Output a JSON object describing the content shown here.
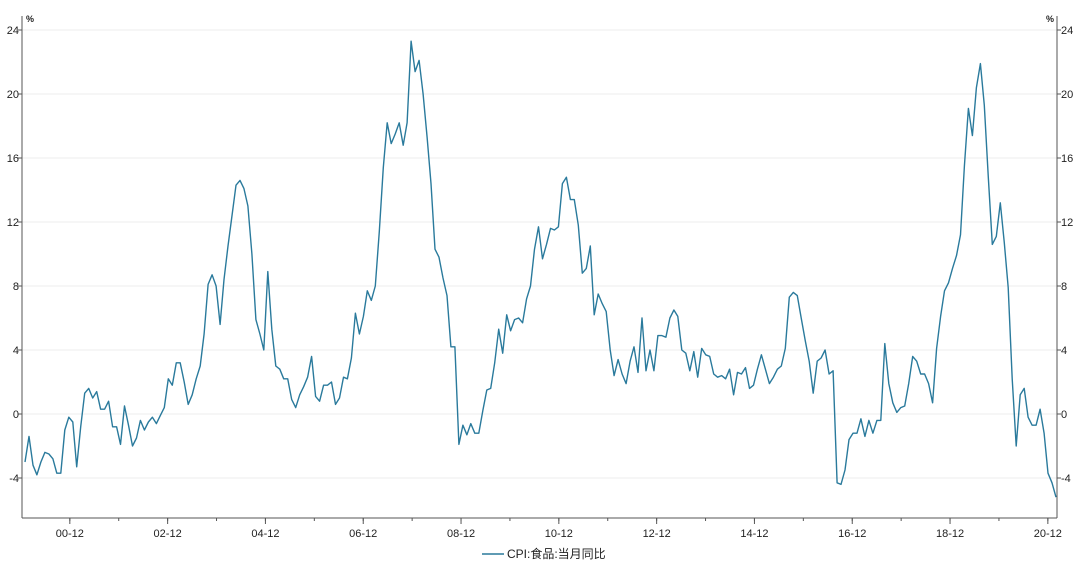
{
  "chart_data": {
    "type": "line",
    "unit_left": "%",
    "unit_right": "%",
    "x_tick_labels": [
      "00-12",
      "02-12",
      "04-12",
      "06-12",
      "08-12",
      "10-12",
      "12-12",
      "14-12",
      "16-12",
      "18-12",
      "20-12"
    ],
    "y_ticks": [
      -4,
      0,
      4,
      8,
      12,
      16,
      20,
      24
    ],
    "ylim": [
      -6.5,
      24.5
    ],
    "x_start": "2000-01",
    "x_end": "2021-02",
    "grid": "horizontal-light",
    "legend_position": "bottom-center",
    "colors": {
      "line": "#2a7a9c",
      "axis": "#555555",
      "grid": "#eeeeee"
    },
    "series": [
      {
        "name": "CPI:食品:当月同比",
        "values": [
          -3.0,
          -1.4,
          -3.2,
          -3.8,
          -3.0,
          -2.4,
          -2.5,
          -2.8,
          -3.7,
          -3.7,
          -1.0,
          -0.2,
          -0.5,
          -3.3,
          -0.8,
          1.3,
          1.6,
          1.0,
          1.4,
          0.3,
          0.3,
          0.8,
          -0.8,
          -0.8,
          -1.9,
          0.5,
          -0.7,
          -2.0,
          -1.5,
          -0.4,
          -1.0,
          -0.5,
          -0.2,
          -0.6,
          -0.1,
          0.4,
          2.2,
          1.8,
          3.2,
          3.2,
          2.0,
          0.6,
          1.2,
          2.2,
          3.0,
          5.0,
          8.1,
          8.7,
          8.0,
          5.6,
          8.4,
          10.5,
          12.4,
          14.3,
          14.6,
          14.1,
          13.0,
          10.0,
          5.9,
          5.0,
          4.0,
          8.9,
          5.3,
          3.0,
          2.8,
          2.2,
          2.2,
          0.9,
          0.4,
          1.2,
          1.7,
          2.3,
          3.6,
          1.1,
          0.8,
          1.8,
          1.8,
          2.0,
          0.6,
          1.0,
          2.3,
          2.2,
          3.5,
          6.3,
          5.0,
          6.1,
          7.7,
          7.1,
          8.0,
          11.4,
          15.4,
          18.2,
          16.9,
          17.5,
          18.2,
          16.8,
          18.2,
          23.3,
          21.4,
          22.1,
          20.0,
          17.3,
          14.4,
          10.3,
          9.8,
          8.5,
          7.4,
          4.2,
          4.2,
          -1.9,
          -0.7,
          -1.3,
          -0.6,
          -1.2,
          -1.2,
          0.2,
          1.5,
          1.6,
          3.2,
          5.3,
          3.8,
          6.2,
          5.2,
          5.9,
          6.0,
          5.7,
          7.2,
          8.0,
          10.3,
          11.7,
          9.7,
          10.6,
          11.6,
          11.5,
          11.7,
          14.4,
          14.8,
          13.4,
          13.4,
          11.8,
          8.8,
          9.1,
          10.5,
          6.2,
          7.5,
          6.9,
          6.4,
          4.0,
          2.4,
          3.4,
          2.5,
          1.9,
          3.3,
          4.2,
          2.6,
          6.0,
          2.7,
          4.0,
          2.7,
          4.9,
          4.9,
          4.8,
          6.0,
          6.5,
          6.1,
          4.0,
          3.8,
          2.7,
          3.9,
          2.3,
          4.1,
          3.7,
          3.6,
          2.5,
          2.3,
          2.4,
          2.2,
          2.8,
          1.2,
          2.6,
          2.5,
          2.9,
          1.6,
          1.8,
          2.8,
          3.7,
          2.8,
          1.9,
          2.3,
          2.8,
          3.0,
          4.1,
          7.3,
          7.6,
          7.4,
          6.0,
          4.6,
          3.3,
          1.3,
          3.3,
          3.5,
          4.0,
          2.5,
          2.7,
          -4.3,
          -4.4,
          -3.5,
          -1.6,
          -1.2,
          -1.2,
          -0.3,
          -1.4,
          -0.4,
          -1.2,
          -0.4,
          -0.4,
          4.4,
          1.9,
          0.7,
          0.1,
          0.4,
          0.5,
          1.9,
          3.6,
          3.3,
          2.5,
          2.5,
          1.9,
          0.7,
          4.1,
          6.1,
          7.7,
          8.2,
          9.1,
          9.9,
          11.2,
          15.5,
          19.1,
          17.4,
          20.4,
          21.9,
          19.3,
          14.8,
          10.6,
          11.1,
          13.2,
          10.7,
          7.9,
          2.2,
          -2.0,
          1.2,
          1.6,
          -0.2,
          -0.7,
          -0.7,
          0.3,
          -1.2,
          -3.7,
          -4.3,
          -5.2
        ]
      }
    ]
  }
}
